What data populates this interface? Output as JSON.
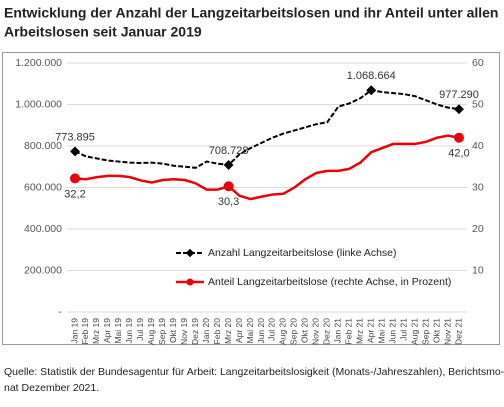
{
  "chart_data": {
    "type": "line",
    "title": [
      "Entwicklung der Anzahl der Langzeitarbeitslosen und ihr Anteil unter allen",
      "Arbeitslosen seit Januar 2019"
    ],
    "source": [
      "Quelle: Statistik der Bundesagentur für Arbeit: Langzeitarbeitslosigkeit (Monats-/Jahreszahlen), Berichtsmo-",
      "nat Dezember 2021."
    ],
    "categories": [
      "Jan 19",
      "Feb 19",
      "Mrz 19",
      "Apr 19",
      "Mai 19",
      "Jun 19",
      "Jul 19",
      "Aug 19",
      "Sep 19",
      "Okt 19",
      "Nov 19",
      "Dez 19",
      "Jan 20",
      "Feb 20",
      "Mrz 20",
      "Apr 20",
      "Mai 20",
      "Jun 20",
      "Jul 20",
      "Aug 20",
      "Sep 20",
      "Okt 20",
      "Nov 20",
      "Dez 20",
      "Jan 21",
      "Feb 21",
      "Mrz 21",
      "Apr 21",
      "Mai 21",
      "Jun 21",
      "Jul 21",
      "Aug 21",
      "Sep 21",
      "Okt 21",
      "Nov 21",
      "Dez 21"
    ],
    "series": [
      {
        "name": "Anzahl Langzeitarbeitslose (linke Achse)",
        "color": "#000000",
        "axis": "y",
        "values": [
          773895,
          750000,
          740000,
          730000,
          725000,
          720000,
          718000,
          720000,
          715000,
          705000,
          700000,
          695000,
          725000,
          715000,
          708728,
          760000,
          790000,
          815000,
          840000,
          860000,
          875000,
          890000,
          905000,
          915000,
          990000,
          1005000,
          1030000,
          1068664,
          1060000,
          1055000,
          1050000,
          1040000,
          1020000,
          1000000,
          985000,
          977290
        ],
        "value_labels": [
          "773.895",
          null,
          null,
          null,
          null,
          null,
          null,
          null,
          null,
          null,
          null,
          null,
          null,
          null,
          "708.728",
          null,
          null,
          null,
          null,
          null,
          null,
          null,
          null,
          null,
          null,
          null,
          null,
          "1.068.664",
          null,
          null,
          null,
          null,
          null,
          null,
          null,
          "977.290"
        ]
      },
      {
        "name": "Anteil Langzeitarbeitslose (rechte Achse, in Prozent)",
        "color": "#e8000b",
        "axis": "y2",
        "values": [
          32.2,
          32,
          32.5,
          32.8,
          32.8,
          32.5,
          31.7,
          31.2,
          31.8,
          32,
          31.8,
          31,
          29.5,
          29.5,
          30.3,
          28.0,
          27.2,
          27.8,
          28.3,
          28.5,
          30,
          32,
          33.5,
          34,
          34,
          34.5,
          36,
          38.5,
          39.5,
          40.5,
          40.5,
          40.5,
          41,
          42,
          42.5,
          42.0
        ],
        "value_labels": [
          "32,2",
          null,
          null,
          null,
          null,
          null,
          null,
          null,
          null,
          null,
          null,
          null,
          null,
          null,
          "30,3",
          null,
          null,
          null,
          null,
          null,
          null,
          null,
          null,
          null,
          null,
          null,
          null,
          null,
          null,
          null,
          null,
          null,
          null,
          null,
          null,
          "42,0"
        ]
      }
    ],
    "ylim": [
      0,
      1200000
    ],
    "yticks": [
      {
        "value": 0,
        "label": "-"
      },
      {
        "value": 200000,
        "label": "200.000"
      },
      {
        "value": 400000,
        "label": "400.000"
      },
      {
        "value": 600000,
        "label": "600.000"
      },
      {
        "value": 800000,
        "label": "800.000"
      },
      {
        "value": 1000000,
        "label": "1.000.000"
      },
      {
        "value": 1200000,
        "label": "1.200.000"
      }
    ],
    "y2lim": [
      0,
      60
    ],
    "y2ticks": [
      10,
      20,
      30,
      40,
      50,
      60
    ],
    "grid": true
  }
}
